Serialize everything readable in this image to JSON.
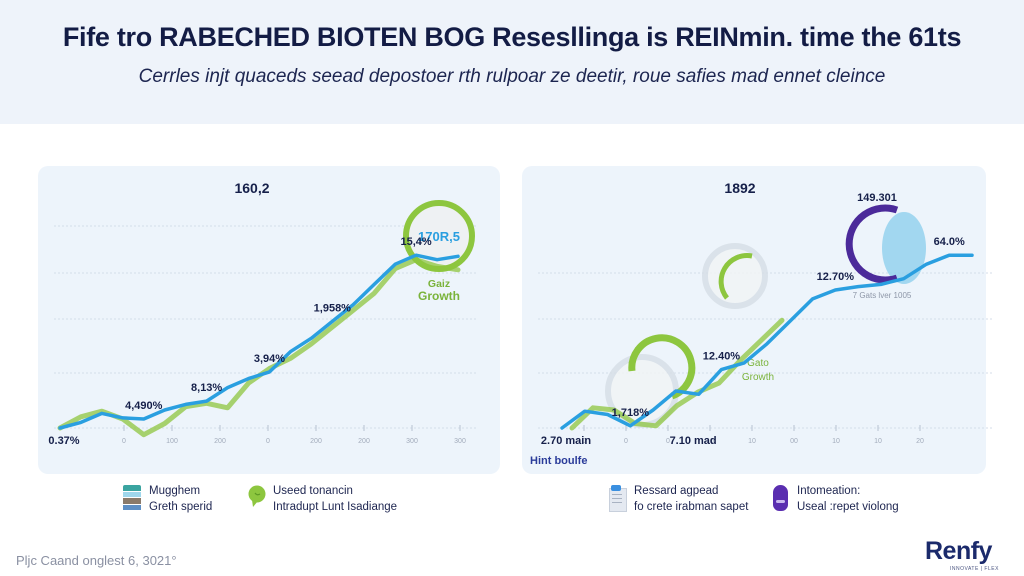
{
  "header": {
    "title": "Fife tro RABECHED BIOTEN BOG Resesllinga is REINmin. time the 61ts",
    "subtitle": "Cerrles injt quaceds seead depostoer rth rulpoar ze deetir, roue safies mad ennet cleince"
  },
  "colors": {
    "primary_line": "#2a9fe0",
    "secondary_line": "#8dc63f",
    "accent_purple": "#4b2a9a",
    "card_bg": "#edf4fb",
    "header_bg": "#eef3fa",
    "text_dark": "#16204a"
  },
  "chart_data": [
    {
      "type": "line",
      "title": "160,2",
      "x_tick_labels": [
        "0",
        "100",
        "200",
        "0",
        "200",
        "200",
        "300",
        "300"
      ],
      "series": [
        {
          "name": "primary",
          "color": "#2a9fe0",
          "values": [
            0.0,
            0.5,
            1.3,
            0.9,
            0.8,
            1.6,
            2.1,
            2.4,
            3.6,
            4.4,
            5.0,
            6.8,
            8.0,
            9.5,
            11.0,
            12.8,
            14.6,
            15.4,
            15.0,
            15.3
          ]
        },
        {
          "name": "secondary",
          "color": "#8dc63f",
          "values": [
            0.0,
            1.0,
            1.5,
            0.8,
            -0.6,
            0.4,
            1.9,
            2.2,
            1.8,
            4.0,
            5.3,
            6.2,
            7.5,
            9.0,
            10.5,
            12.0,
            14.2,
            15.0,
            14.4,
            14.1
          ]
        }
      ],
      "annotations": [
        {
          "label": "0.37%",
          "index": 0
        },
        {
          "label": "4,490%",
          "index": 4
        },
        {
          "label": "8,13%",
          "index": 7
        },
        {
          "label": "3,94%",
          "index": 10
        },
        {
          "label": "1,958%",
          "index": 13
        },
        {
          "label": "15,4%",
          "index": 17
        }
      ],
      "callout": {
        "value": "170R,5",
        "label_line1": "Gaiz",
        "label_line2": "Growth"
      },
      "ylim": [
        -2,
        18
      ],
      "grid": true
    },
    {
      "type": "line",
      "title": "1892",
      "x_tick_labels": [
        "0",
        "0",
        "0",
        "10",
        "10",
        "00",
        "10",
        "10",
        "20"
      ],
      "series": [
        {
          "name": "primary",
          "color": "#2a9fe0",
          "values": [
            0.0,
            1.5,
            1.2,
            0.2,
            1.6,
            3.3,
            3.0,
            5.2,
            5.8,
            7.5,
            9.5,
            11.5,
            12.3,
            12.6,
            12.8,
            13.3,
            14.6,
            15.4,
            15.4
          ]
        },
        {
          "name": "secondary",
          "color": "#8dc63f",
          "values": [
            0.0,
            1.8,
            1.6,
            0.4,
            0.2,
            2.0,
            3.2,
            4.0,
            6.0,
            7.8,
            9.6
          ]
        }
      ],
      "annotations": [
        {
          "label": "2.70 main",
          "index": 0
        },
        {
          "label": "1,718%",
          "index": 3
        },
        {
          "label": "7.10 mad",
          "index": 4
        },
        {
          "label": "12.40%",
          "index": 7
        },
        {
          "label": "12.70%",
          "index": 12
        },
        {
          "label": "64.0%",
          "index": 17
        }
      ],
      "callout_top": {
        "value": "149.301",
        "note": "7 Gats lver 1005"
      },
      "callout_mid": {
        "label_line1": "Gato",
        "label_line2": "Growth"
      },
      "axis_note": "Hint boulfe",
      "ylim": [
        -2,
        18
      ],
      "grid": true
    }
  ],
  "legend_left": [
    {
      "icon": "layered-stack-icon",
      "line1": "Mugghem",
      "line2": "Greth sperid"
    },
    {
      "icon": "chat-bubble-icon",
      "line1": "Useed tonancin",
      "line2": "Intradupt Lunt Isadiange"
    }
  ],
  "legend_right": [
    {
      "icon": "document-icon",
      "line1": "Ressard agpead",
      "line2": "fo crete irabman sapet"
    },
    {
      "icon": "purple-capsule-icon",
      "line1": "Intomeation:",
      "line2": "Useal :repet violong"
    }
  ],
  "footer": {
    "date": "Pljc Caand onglest 6, 3021°",
    "logo": "Renfy",
    "logo_tagline": "INNOVATE | FLEX"
  }
}
